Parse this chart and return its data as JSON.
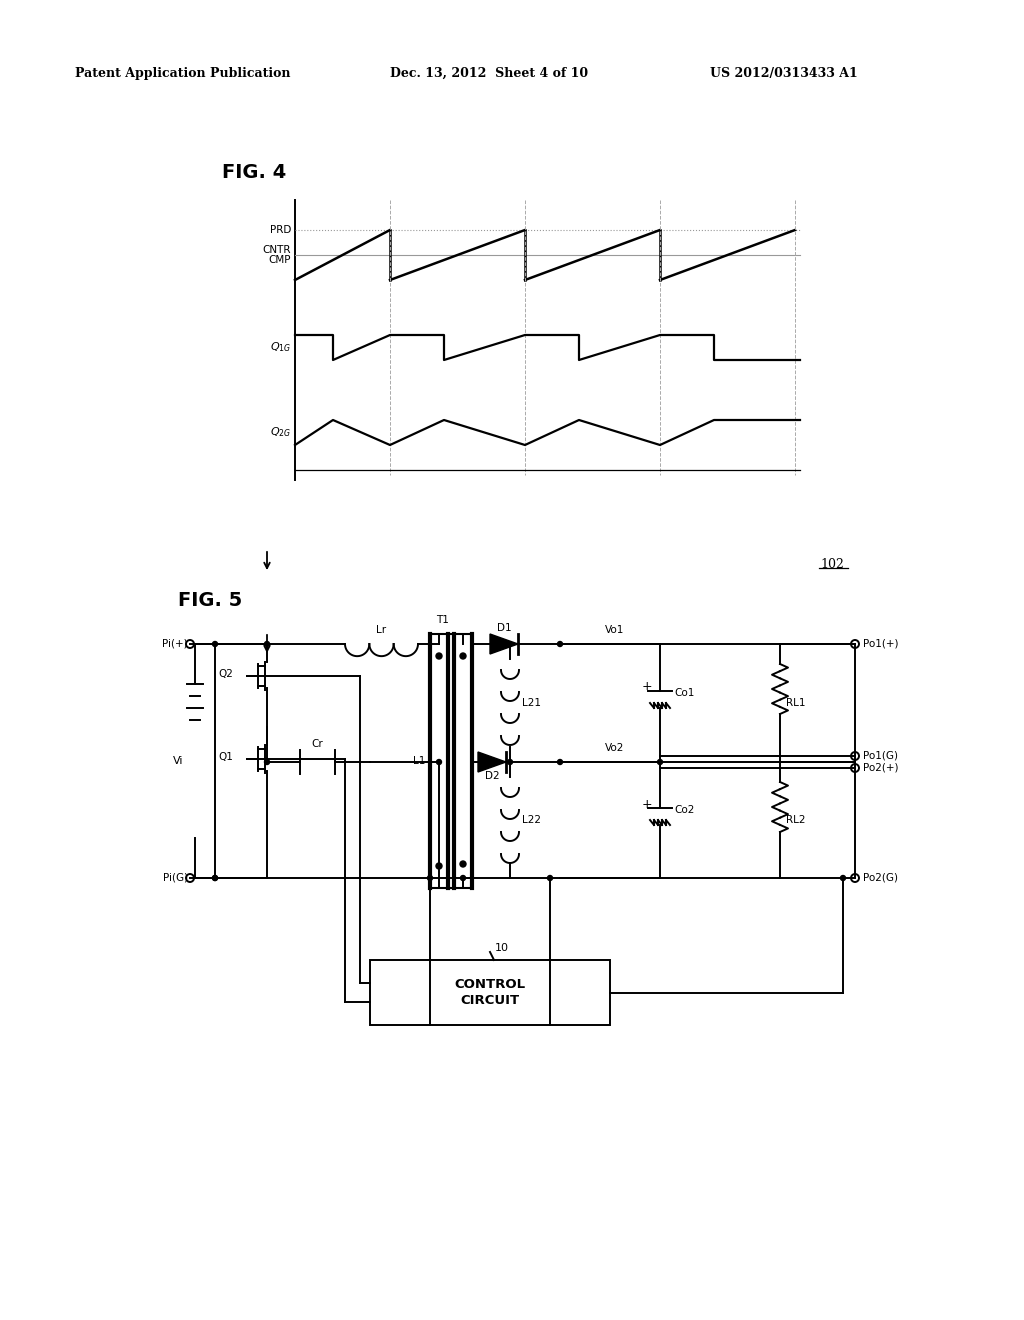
{
  "bg_color": "#ffffff",
  "header_left": "Patent Application Publication",
  "header_mid": "Dec. 13, 2012  Sheet 4 of 10",
  "header_right": "US 2012/0313433 A1"
}
